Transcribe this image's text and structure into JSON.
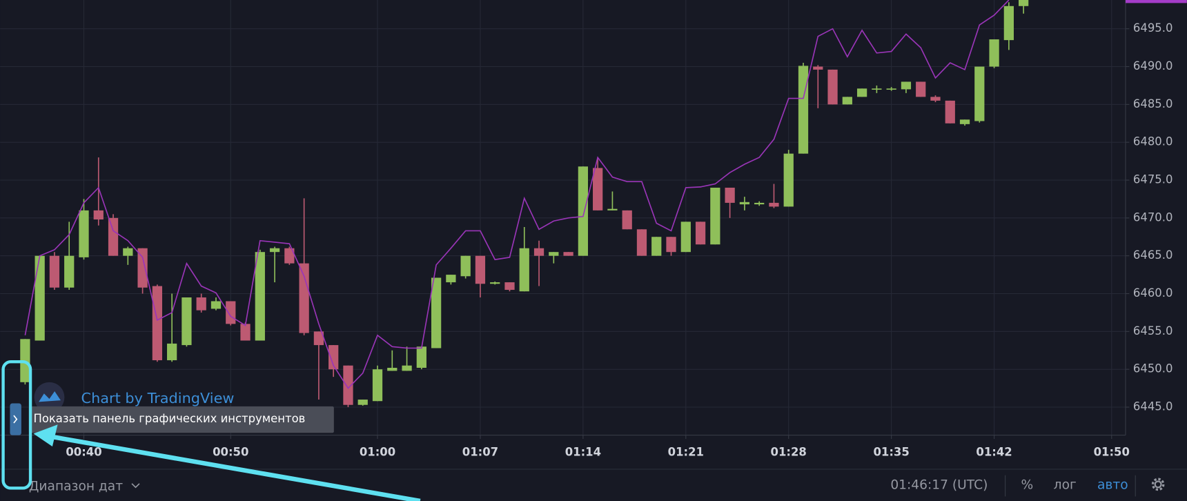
{
  "chart_data": {
    "type": "candlestick",
    "categories": [
      null,
      null,
      null,
      null,
      "00:40",
      null,
      null,
      null,
      null,
      null,
      null,
      null,
      null,
      null,
      "00:50",
      null,
      null,
      null,
      null,
      null,
      null,
      null,
      null,
      null,
      "01:00",
      null,
      null,
      null,
      null,
      null,
      null,
      "01:07",
      null,
      null,
      null,
      null,
      null,
      null,
      "01:14",
      null,
      null,
      null,
      null,
      null,
      null,
      "01:21",
      null,
      null,
      null,
      null,
      null,
      null,
      "01:28",
      null,
      null,
      null,
      null,
      null,
      null,
      "01:35",
      null,
      null,
      null,
      null,
      null,
      null,
      "01:42",
      null,
      null,
      null,
      null,
      null,
      null,
      null,
      "01:50"
    ],
    "open": [
      6448.3,
      6453.8,
      6465.0,
      6460.8,
      6464.8,
      6471.0,
      6470.0,
      6465.0,
      6466.0,
      6461.0,
      6451.2,
      6453.2,
      6459.5,
      6458.0,
      6459.0,
      6456.0,
      6453.8,
      6465.5,
      6466.0,
      6464.0,
      6455.0,
      6453.2,
      6450.5,
      6445.3,
      6445.8,
      6449.8,
      6449.8,
      6450.2,
      6452.8,
      6461.5,
      6462.3,
      6465.0,
      6461.3,
      6461.5,
      6460.3,
      6466.0,
      6465.0,
      6465.5,
      6465.0,
      6476.6,
      6471.0,
      6471.0,
      6468.5,
      6465.0,
      6467.5,
      6465.5,
      6469.5,
      6466.5,
      6474.0,
      6471.8,
      6471.8,
      6472.0,
      6471.5,
      6478.5,
      6490.0,
      6489.6,
      6485.0,
      6486.0,
      6487.0,
      6487.0,
      6487.0,
      6488.0,
      6486.0,
      6485.5,
      6482.4,
      6482.8,
      6490.0,
      6493.5,
      6498.0,
      null,
      null,
      null,
      null,
      null,
      null
    ],
    "high": [
      6454.0,
      6465.0,
      6465.5,
      6469.5,
      6472.5,
      6478.0,
      6470.5,
      6466.2,
      6466.0,
      6461.2,
      6460.0,
      6459.5,
      6460.0,
      6459.5,
      6459.0,
      6456.2,
      6465.8,
      6466.2,
      6466.2,
      6472.6,
      6455.0,
      6453.2,
      6450.5,
      6446.0,
      6450.5,
      6452.5,
      6453.0,
      6453.0,
      6462.1,
      6462.5,
      6465.0,
      6465.0,
      6461.6,
      6461.5,
      6468.8,
      6467.0,
      6465.5,
      6465.5,
      6476.8,
      6478.0,
      6473.5,
      6471.0,
      6468.5,
      6467.5,
      6467.5,
      6469.5,
      6469.5,
      6474.0,
      6474.0,
      6472.8,
      6472.2,
      6474.5,
      6479.0,
      6490.5,
      6490.2,
      6489.6,
      6486.0,
      6487.1,
      6487.5,
      6487.3,
      6488.0,
      6488.0,
      6486.2,
      6485.5,
      6483.0,
      6490.0,
      6493.6,
      6498.5,
      6499.5,
      null,
      null,
      null,
      null,
      null,
      null
    ],
    "low": [
      6448.0,
      6453.8,
      6460.5,
      6460.5,
      6464.5,
      6469.0,
      6465.0,
      6463.8,
      6460.0,
      6451.0,
      6451.0,
      6453.0,
      6457.5,
      6457.8,
      6455.8,
      6453.8,
      6453.8,
      6461.5,
      6463.8,
      6454.5,
      6446.0,
      6449.0,
      6445.0,
      6445.2,
      6445.8,
      6449.8,
      6449.8,
      6450.0,
      6452.8,
      6461.2,
      6462.0,
      6459.5,
      6461.2,
      6460.3,
      6460.3,
      6461.0,
      6464.0,
      6465.0,
      6465.0,
      6471.0,
      6471.0,
      6468.5,
      6465.0,
      6465.0,
      6465.0,
      6465.5,
      6466.5,
      6466.5,
      6470.0,
      6471.0,
      6471.6,
      6471.3,
      6471.5,
      6478.5,
      6484.5,
      6485.0,
      6485.0,
      6486.0,
      6486.5,
      6486.8,
      6486.5,
      6486.0,
      6485.3,
      6482.5,
      6482.2,
      6482.6,
      6489.8,
      6492.2,
      6497.0,
      null,
      null,
      null,
      null,
      null,
      null
    ],
    "close": [
      6454.0,
      6465.0,
      6460.8,
      6465.0,
      6471.0,
      6469.8,
      6465.0,
      6466.0,
      6460.8,
      6451.2,
      6453.4,
      6459.5,
      6457.8,
      6459.0,
      6456.0,
      6453.8,
      6465.5,
      6466.0,
      6464.0,
      6454.8,
      6453.2,
      6450.0,
      6445.3,
      6446.0,
      6450.0,
      6450.2,
      6450.5,
      6453.0,
      6462.1,
      6462.5,
      6465.0,
      6461.3,
      6461.5,
      6460.5,
      6466.0,
      6465.0,
      6465.5,
      6465.0,
      6476.8,
      6471.0,
      6471.2,
      6468.5,
      6465.0,
      6467.5,
      6465.5,
      6469.5,
      6466.5,
      6474.0,
      6472.0,
      6472.1,
      6472.0,
      6471.5,
      6478.5,
      6490.1,
      6489.6,
      6485.0,
      6486.0,
      6487.1,
      6487.1,
      6487.1,
      6488.0,
      6486.0,
      6485.5,
      6482.5,
      6483.0,
      6490.0,
      6493.6,
      6498.0,
      6499.0,
      null,
      null,
      null,
      null,
      null,
      null
    ],
    "up_color": "#8fbf5a",
    "down_color": "#bd5a72",
    "overlay": {
      "type": "line",
      "color": "#9a35b8",
      "values": [
        6454.5,
        6465.0,
        6465.8,
        6467.8,
        6472.0,
        6474.0,
        6468.3,
        6467.0,
        6464.8,
        6456.5,
        6457.5,
        6464.0,
        6461.0,
        6460.1,
        6457.0,
        6455.8,
        6467.0,
        6466.8,
        6466.6,
        6462.3,
        6456.0,
        6450.5,
        6447.5,
        6449.5,
        6454.5,
        6453.0,
        6452.8,
        6452.8,
        6463.8,
        6466.0,
        6468.3,
        6468.3,
        6464.5,
        6464.8,
        6472.6,
        6468.5,
        6469.6,
        6470.0,
        6470.2,
        6478.0,
        6475.4,
        6474.8,
        6474.8,
        6469.3,
        6468.3,
        6474.0,
        6474.1,
        6474.5,
        6476.0,
        6477.1,
        6478.0,
        6480.4,
        6485.8,
        6485.8,
        6494.0,
        6495.0,
        6491.3,
        6494.8,
        6491.8,
        6492.0,
        6494.3,
        6492.5,
        6488.5,
        6490.5,
        6489.6,
        6495.5,
        6496.8,
        6498.8,
        null,
        null,
        null,
        null,
        null,
        null,
        null
      ]
    },
    "ylim": [
      6441.3,
      6498.8
    ],
    "yticks": [
      {
        "value": 6445,
        "label": "6445.0"
      },
      {
        "value": 6450,
        "label": "6450.0"
      },
      {
        "value": 6455,
        "label": "6455.0"
      },
      {
        "value": 6460,
        "label": "6460.0"
      },
      {
        "value": 6465,
        "label": "6465.0"
      },
      {
        "value": 6470,
        "label": "6470.0"
      },
      {
        "value": 6475,
        "label": "6475.0"
      },
      {
        "value": 6480,
        "label": "6480.0"
      },
      {
        "value": 6485,
        "label": "6485.0"
      },
      {
        "value": 6490,
        "label": "6490.0"
      },
      {
        "value": 6495,
        "label": "6495.0"
      }
    ],
    "grid": true
  },
  "watermark": "Chart by TradingView",
  "tooltip": "Показать панель графических инструментов",
  "toolbar": {
    "date_range": "Диапазон дат",
    "clock": "01:46:17 (UTC)",
    "percent": "%",
    "log": "лог",
    "auto": "авто"
  }
}
